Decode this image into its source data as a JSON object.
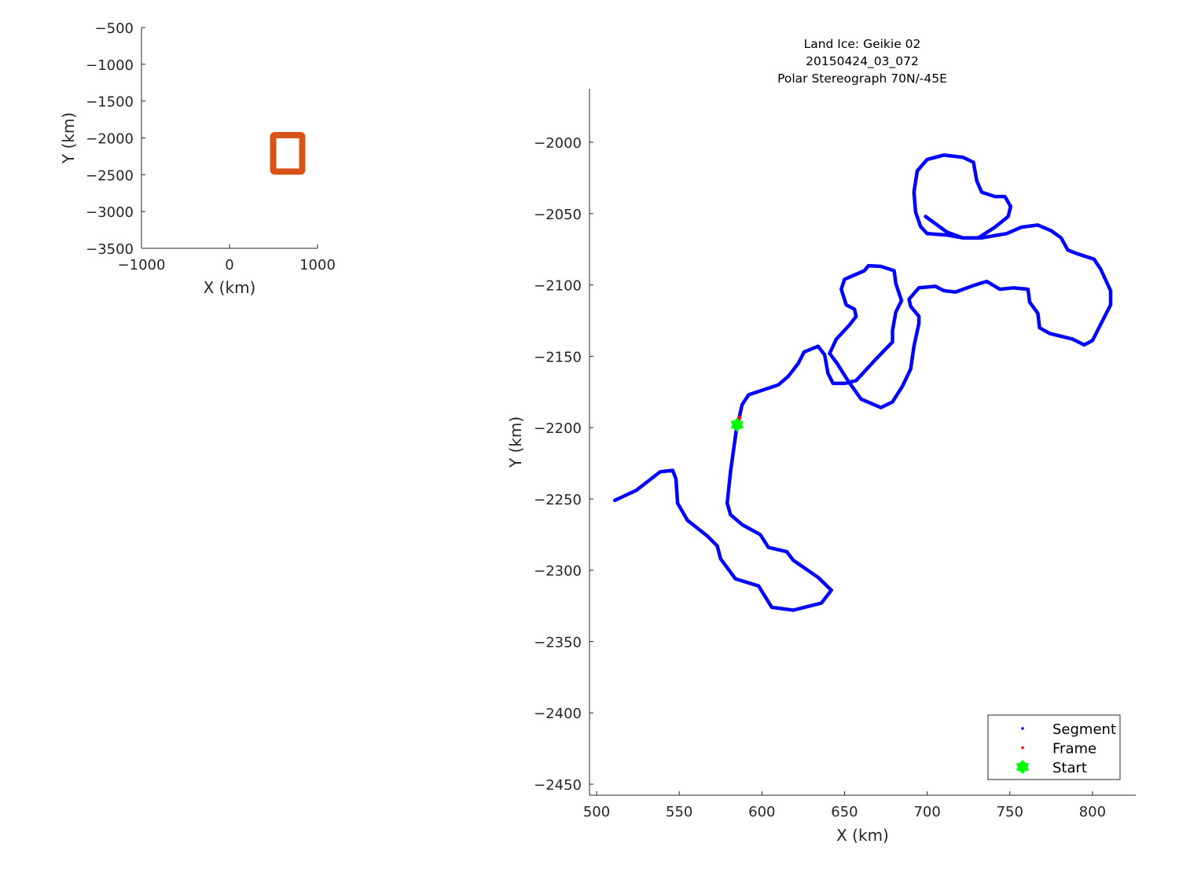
{
  "chart_data": [
    {
      "type": "line",
      "title": "",
      "xlabel": "X (km)",
      "ylabel": "Y (km)",
      "xlim": [
        -1000,
        1000
      ],
      "ylim": [
        -3500,
        -500
      ],
      "xticks": [
        -1000,
        0,
        1000
      ],
      "yticks": [
        -3500,
        -3000,
        -2500,
        -2000,
        -1500,
        -1000,
        -500
      ],
      "grid": false,
      "series": [
        {
          "kind": "rectangle",
          "color": "#D95319",
          "x": [
            496,
            826
          ],
          "y": [
            -2458,
            -1962
          ]
        }
      ]
    },
    {
      "type": "scatter",
      "title_lines": [
        "Land Ice: Geikie 02",
        "20150424_03_072",
        "Polar Stereograph 70N/-45E"
      ],
      "xlabel": "X (km)",
      "ylabel": "Y (km)",
      "xlim": [
        495.7,
        826.2
      ],
      "ylim": [
        -2457.7,
        -1962.5
      ],
      "xticks": [
        500,
        550,
        600,
        650,
        700,
        750,
        800
      ],
      "yticks": [
        -2450,
        -2400,
        -2350,
        -2300,
        -2250,
        -2200,
        -2150,
        -2100,
        -2050,
        -2000
      ],
      "grid": false,
      "legend_placement": "bottom-right",
      "series": [
        {
          "name": "Segment",
          "color": "#0000FF",
          "marker": "dot",
          "points": [
            [
              511,
              -2251
            ],
            [
              524,
              -2244
            ],
            [
              538.5,
              -2231
            ],
            [
              546,
              -2230
            ],
            [
              548,
              -2236
            ],
            [
              549,
              -2253
            ],
            [
              555,
              -2265
            ],
            [
              567,
              -2276
            ],
            [
              573,
              -2283
            ],
            [
              575,
              -2292
            ],
            [
              584,
              -2306
            ],
            [
              598,
              -2311
            ],
            [
              606,
              -2326
            ],
            [
              619,
              -2328
            ],
            [
              636,
              -2323
            ],
            [
              642,
              -2314
            ],
            [
              634,
              -2305
            ],
            [
              619,
              -2293
            ],
            [
              615,
              -2287
            ],
            [
              604,
              -2284
            ],
            [
              599,
              -2275
            ],
            [
              588,
              -2268
            ],
            [
              581,
              -2261
            ],
            [
              579,
              -2253
            ],
            [
              581,
              -2231
            ],
            [
              584,
              -2206
            ],
            [
              585,
              -2198
            ],
            [
              586.5,
              -2192
            ],
            [
              588,
              -2184
            ],
            [
              592,
              -2177
            ],
            [
              610,
              -2170
            ],
            [
              616,
              -2164
            ],
            [
              622,
              -2155
            ],
            [
              625.5,
              -2147
            ],
            [
              634,
              -2143
            ],
            [
              638,
              -2149
            ],
            [
              640,
              -2162
            ],
            [
              643,
              -2169
            ],
            [
              650,
              -2169
            ],
            [
              657,
              -2167
            ],
            [
              669,
              -2152
            ],
            [
              679,
              -2140
            ],
            [
              679,
              -2132
            ],
            [
              681,
              -2119
            ],
            [
              684.5,
              -2111
            ],
            [
              681,
              -2099
            ],
            [
              680,
              -2090
            ],
            [
              672,
              -2087
            ],
            [
              664.5,
              -2086.5
            ],
            [
              662,
              -2090
            ],
            [
              650,
              -2096
            ],
            [
              648,
              -2103
            ],
            [
              651,
              -2114
            ],
            [
              656,
              -2117
            ],
            [
              657,
              -2122
            ],
            [
              653,
              -2128
            ],
            [
              645,
              -2138
            ],
            [
              641,
              -2148
            ],
            [
              645.5,
              -2155
            ],
            [
              652,
              -2167
            ],
            [
              660,
              -2180
            ],
            [
              672,
              -2186
            ],
            [
              679,
              -2182
            ],
            [
              685,
              -2171
            ],
            [
              690,
              -2159
            ],
            [
              692,
              -2143
            ],
            [
              695,
              -2127
            ],
            [
              695,
              -2122
            ],
            [
              690,
              -2115
            ],
            [
              689,
              -2110
            ],
            [
              695,
              -2102
            ],
            [
              705,
              -2101
            ],
            [
              710,
              -2104
            ],
            [
              717,
              -2105
            ],
            [
              729,
              -2100
            ],
            [
              736,
              -2097.5
            ],
            [
              744,
              -2103
            ],
            [
              752,
              -2102
            ],
            [
              761,
              -2103
            ],
            [
              762,
              -2112
            ],
            [
              767,
              -2120
            ],
            [
              768,
              -2130
            ],
            [
              774,
              -2134
            ],
            [
              788,
              -2138
            ],
            [
              795,
              -2142
            ],
            [
              800,
              -2139
            ],
            [
              807,
              -2123
            ],
            [
              811,
              -2114
            ],
            [
              811,
              -2104
            ],
            [
              805,
              -2089
            ],
            [
              801,
              -2082
            ],
            [
              790.5,
              -2078
            ],
            [
              785,
              -2075.5
            ],
            [
              781,
              -2067
            ],
            [
              775,
              -2062
            ],
            [
              767,
              -2058
            ],
            [
              757,
              -2059.5
            ],
            [
              748,
              -2064
            ],
            [
              733,
              -2067
            ],
            [
              721.5,
              -2067
            ],
            [
              712,
              -2065
            ],
            [
              700,
              -2064
            ],
            [
              696,
              -2059
            ],
            [
              693,
              -2049
            ],
            [
              692,
              -2035
            ],
            [
              694,
              -2020
            ],
            [
              700,
              -2012
            ],
            [
              710,
              -2009
            ],
            [
              721.5,
              -2010.5
            ],
            [
              728,
              -2014
            ],
            [
              730,
              -2027
            ],
            [
              733,
              -2035
            ],
            [
              741,
              -2038
            ],
            [
              747,
              -2038
            ],
            [
              750.5,
              -2045
            ],
            [
              749,
              -2052
            ],
            [
              741,
              -2059.5
            ],
            [
              731,
              -2067
            ],
            [
              721.5,
              -2067
            ],
            [
              712,
              -2063
            ],
            [
              699,
              -2052
            ]
          ]
        },
        {
          "name": "Frame",
          "color": "#FF0000",
          "marker": "dot",
          "points": [
            [
              586.5,
              -2193
            ]
          ]
        },
        {
          "name": "Start",
          "color": "#00FF00",
          "marker": "hexagram",
          "points": [
            [
              585,
              -2198
            ]
          ]
        }
      ]
    }
  ]
}
